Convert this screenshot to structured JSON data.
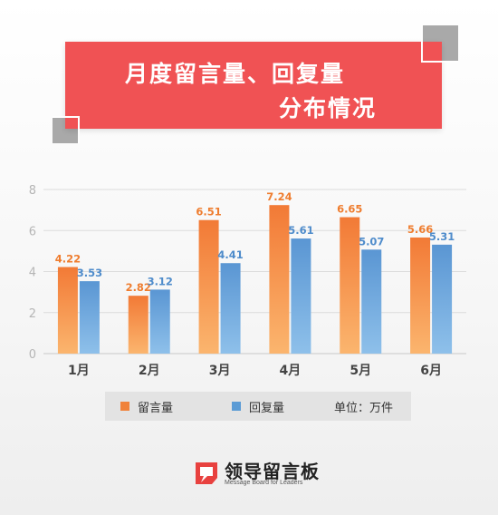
{
  "title": {
    "line1": "月度留言量、回复量",
    "line2": "分布情况"
  },
  "colors": {
    "banner": "#f05254",
    "series1": "#f0823a",
    "series2": "#5b9bd5"
  },
  "chart_data": {
    "type": "bar",
    "categories": [
      "1月",
      "2月",
      "3月",
      "4月",
      "5月",
      "6月"
    ],
    "series": [
      {
        "name": "留言量",
        "values": [
          4.22,
          2.82,
          6.51,
          7.24,
          6.65,
          5.66
        ]
      },
      {
        "name": "回复量",
        "values": [
          3.53,
          3.12,
          4.41,
          5.61,
          5.07,
          5.31
        ]
      }
    ],
    "ylim": [
      0,
      8
    ],
    "yticks": [
      0,
      2,
      4,
      6,
      8
    ],
    "unit_label": "单位：万件",
    "grid": true,
    "legend": "bottom"
  },
  "legend": {
    "s1": "留言量",
    "s2": "回复量",
    "unit": "单位：万件"
  },
  "footer": {
    "brand": "领导留言板",
    "sub": "Message Board for Leaders"
  }
}
